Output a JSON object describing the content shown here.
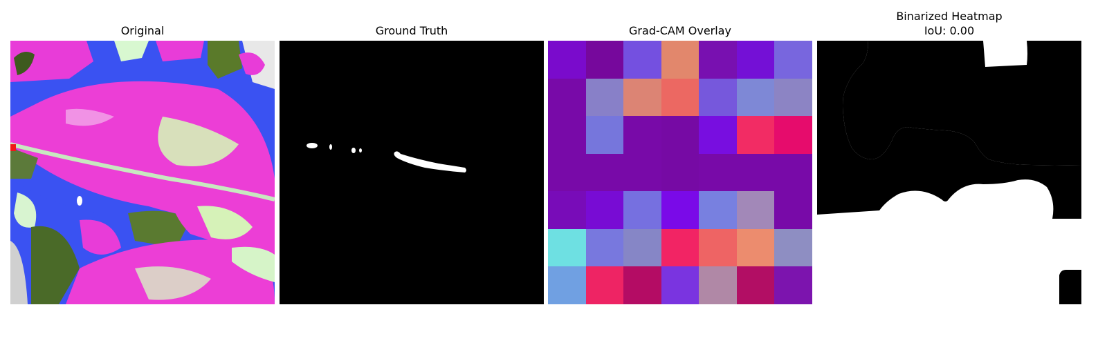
{
  "panels": {
    "original": {
      "title": "Original"
    },
    "ground_truth": {
      "title": "Ground Truth"
    },
    "gradcam": {
      "title": "Grad-CAM Overlay",
      "grid_colors": [
        [
          "#7a0bcc",
          "#76089c",
          "#7450e0",
          "#e2876c",
          "#7810b0",
          "#7410d6",
          "#7866de"
        ],
        [
          "#780aa8",
          "#8880c8",
          "#dc8474",
          "#ec6862",
          "#7658dc",
          "#7e88d6",
          "#8c84c4"
        ],
        [
          "#780aa8",
          "#7676dc",
          "#780aa8",
          "#760aa4",
          "#780ee0",
          "#f22c64",
          "#e60c6c"
        ],
        [
          "#780aa8",
          "#780aa8",
          "#780aa8",
          "#760aa4",
          "#780aa8",
          "#780aa8",
          "#780aa8"
        ],
        [
          "#780cb8",
          "#780cd4",
          "#7670e0",
          "#7a0ae8",
          "#7880e0",
          "#a288b8",
          "#780aa8"
        ],
        [
          "#6ee0e2",
          "#7878de",
          "#8686c6",
          "#f22464",
          "#ee6464",
          "#ec8c6e",
          "#8e8ec2"
        ],
        [
          "#70a0e2",
          "#ee2464",
          "#b40c64",
          "#7a34e0",
          "#b088a6",
          "#b20e64",
          "#7c14ae"
        ]
      ]
    },
    "binarized": {
      "title_line1": "Binarized Heatmap",
      "title_line2": "IoU: 0.00"
    }
  }
}
